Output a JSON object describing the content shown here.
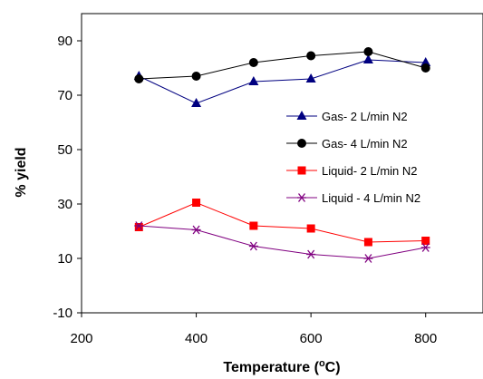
{
  "chart_data": {
    "type": "line",
    "xlabel": "Temperature (",
    "xlabel_unit_sup": "o",
    "xlabel_unit": "C)",
    "ylabel": "% yield",
    "xlim": [
      200,
      900
    ],
    "ylim": [
      -10,
      100
    ],
    "x_ticks": [
      "200",
      "400",
      "600",
      "800"
    ],
    "y_ticks": [
      "-10",
      "10",
      "30",
      "50",
      "70",
      "90"
    ],
    "grid": false,
    "legend_position": "right",
    "x": [
      300,
      400,
      500,
      600,
      700,
      800
    ],
    "series": [
      {
        "name": "Gas- 2 L/min N2",
        "values": [
          77,
          67,
          75,
          76,
          83,
          82
        ],
        "color": "#000080",
        "marker": "triangle"
      },
      {
        "name": "Gas- 4 L/min N2",
        "values": [
          76,
          77,
          82,
          84.5,
          86,
          80
        ],
        "color": "#000000",
        "marker": "circle"
      },
      {
        "name": "Liquid- 2 L/min N2",
        "values": [
          21.5,
          30.5,
          22,
          21,
          16,
          16.5
        ],
        "color": "#ff0000",
        "marker": "square"
      },
      {
        "name": "Liquid - 4 L/min N2",
        "values": [
          22,
          20.5,
          14.5,
          11.5,
          10,
          14
        ],
        "color": "#800080",
        "marker": "asterisk"
      }
    ]
  }
}
